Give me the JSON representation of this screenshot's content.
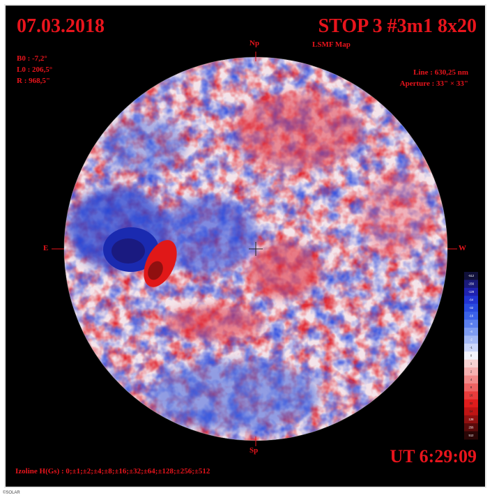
{
  "header": {
    "date": "07.03.2018",
    "title": "STOP 3 #3m1 8x20",
    "subtitle": "LSMF Map"
  },
  "params_left": {
    "b0": "B0 : -7,2°",
    "l0": "L0 : 206,5°",
    "r": "R  : 968,5\""
  },
  "params_right": {
    "line": "Line :  630,25 nm",
    "aperture": "Aperture : 33\" × 33\""
  },
  "directions": {
    "north": "Np",
    "south": "Sp",
    "east": "E",
    "west": "W"
  },
  "colorbar": {
    "labels": [
      "-512",
      "-256",
      "-128",
      "-64",
      "-32",
      "-16",
      "-8",
      "-4",
      "-2",
      "-1",
      "0",
      "1",
      "2",
      "4",
      "8",
      "16",
      "32",
      "64",
      "128",
      "256",
      "512"
    ],
    "colors": [
      "#10103a",
      "#1a1a7a",
      "#1f22b0",
      "#2234d2",
      "#2a4be0",
      "#3b62e8",
      "#5b7fee",
      "#7e9cf2",
      "#a4b9f6",
      "#cbd6fa",
      "#f3f3fb",
      "#f8d2d2",
      "#f6b0b0",
      "#f28a8a",
      "#ee6464",
      "#e83c3c",
      "#e01c1c",
      "#c01414",
      "#901010",
      "#5a0a0a",
      "#2a0606"
    ]
  },
  "footer": {
    "izoline": "Izoline H(Gs) : 0;±1;±2;±4;±8;±16;±32;±64;±128;±256;±512",
    "ut": "UT 6:29:09",
    "credit": "©SOLAR"
  }
}
